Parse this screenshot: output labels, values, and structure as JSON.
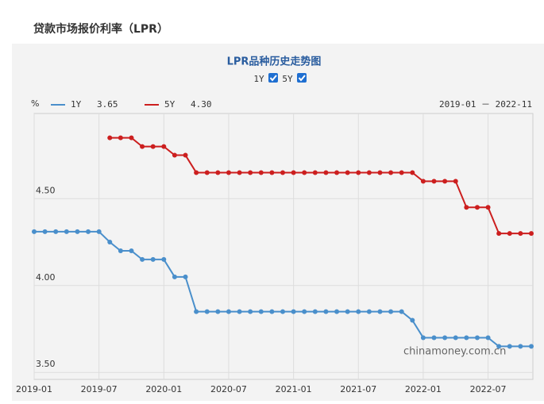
{
  "header": {
    "title": "贷款市场报价利率（LPR）"
  },
  "chart_data": {
    "type": "line",
    "title": "LPR品种历史走势图",
    "toggles": [
      "1Y",
      "5Y"
    ],
    "y_unit": "%",
    "range_text": "2019-01 － 2022-11",
    "watermark": "chinamoney.com.cn",
    "categories": [
      "2019-01",
      null,
      null,
      null,
      null,
      null,
      "2019-07",
      null,
      null,
      null,
      null,
      null,
      "2020-01",
      null,
      null,
      null,
      null,
      null,
      "2020-07",
      null,
      null,
      null,
      null,
      null,
      "2021-01",
      null,
      null,
      null,
      null,
      null,
      "2021-07",
      null,
      null,
      null,
      null,
      null,
      "2022-01",
      null,
      null,
      null,
      null,
      null,
      "2022-07",
      null,
      null,
      null,
      null
    ],
    "series": [
      {
        "name": "1Y",
        "current": "3.65",
        "color": "#4a8fcb",
        "values": [
          4.31,
          4.31,
          4.31,
          4.31,
          4.31,
          4.31,
          4.31,
          4.25,
          4.2,
          4.2,
          4.15,
          4.15,
          4.15,
          4.05,
          4.05,
          3.85,
          3.85,
          3.85,
          3.85,
          3.85,
          3.85,
          3.85,
          3.85,
          3.85,
          3.85,
          3.85,
          3.85,
          3.85,
          3.85,
          3.85,
          3.85,
          3.85,
          3.85,
          3.85,
          3.85,
          3.8,
          3.7,
          3.7,
          3.7,
          3.7,
          3.7,
          3.7,
          3.7,
          3.65,
          3.65,
          3.65,
          3.65
        ]
      },
      {
        "name": "5Y",
        "current": "4.30",
        "color": "#cc1f1f",
        "values": [
          null,
          null,
          null,
          null,
          null,
          null,
          null,
          4.85,
          4.85,
          4.85,
          4.8,
          4.8,
          4.8,
          4.75,
          4.75,
          4.65,
          4.65,
          4.65,
          4.65,
          4.65,
          4.65,
          4.65,
          4.65,
          4.65,
          4.65,
          4.65,
          4.65,
          4.65,
          4.65,
          4.65,
          4.65,
          4.65,
          4.65,
          4.65,
          4.65,
          4.65,
          4.6,
          4.6,
          4.6,
          4.6,
          4.45,
          4.45,
          4.45,
          4.3,
          4.3,
          4.3,
          4.3
        ]
      }
    ],
    "ylim": [
      3.46,
      4.99
    ],
    "yticks": [
      {
        "value": 3.5,
        "label": "3.50"
      },
      {
        "value": 4.0,
        "label": "4.00"
      },
      {
        "value": 4.5,
        "label": "4.50"
      }
    ],
    "grid": true
  }
}
